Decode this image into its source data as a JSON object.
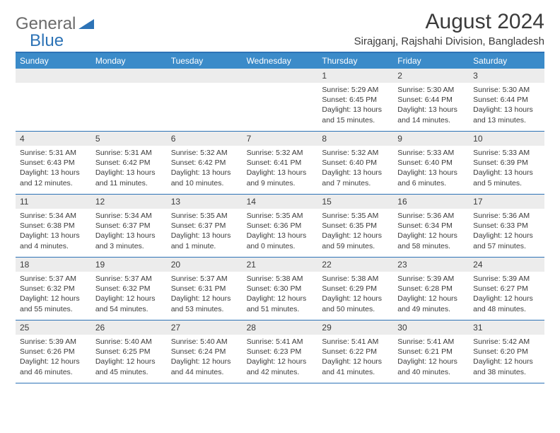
{
  "logo": {
    "text1": "General",
    "text2": "Blue"
  },
  "title": "August 2024",
  "location": "Sirajganj, Rajshahi Division, Bangladesh",
  "colors": {
    "header_bg": "#3b8bc9",
    "border": "#2d73b6",
    "date_bg": "#ececec",
    "text": "#3b3b3b",
    "logo_gray": "#6b6b6b",
    "logo_blue": "#2d73b6",
    "white": "#ffffff"
  },
  "day_names": [
    "Sunday",
    "Monday",
    "Tuesday",
    "Wednesday",
    "Thursday",
    "Friday",
    "Saturday"
  ],
  "weeks": [
    [
      {
        "empty": true
      },
      {
        "empty": true
      },
      {
        "empty": true
      },
      {
        "empty": true
      },
      {
        "date": "1",
        "sunrise": "5:29 AM",
        "sunset": "6:45 PM",
        "daylight": "13 hours and 15 minutes."
      },
      {
        "date": "2",
        "sunrise": "5:30 AM",
        "sunset": "6:44 PM",
        "daylight": "13 hours and 14 minutes."
      },
      {
        "date": "3",
        "sunrise": "5:30 AM",
        "sunset": "6:44 PM",
        "daylight": "13 hours and 13 minutes."
      }
    ],
    [
      {
        "date": "4",
        "sunrise": "5:31 AM",
        "sunset": "6:43 PM",
        "daylight": "13 hours and 12 minutes."
      },
      {
        "date": "5",
        "sunrise": "5:31 AM",
        "sunset": "6:42 PM",
        "daylight": "13 hours and 11 minutes."
      },
      {
        "date": "6",
        "sunrise": "5:32 AM",
        "sunset": "6:42 PM",
        "daylight": "13 hours and 10 minutes."
      },
      {
        "date": "7",
        "sunrise": "5:32 AM",
        "sunset": "6:41 PM",
        "daylight": "13 hours and 9 minutes."
      },
      {
        "date": "8",
        "sunrise": "5:32 AM",
        "sunset": "6:40 PM",
        "daylight": "13 hours and 7 minutes."
      },
      {
        "date": "9",
        "sunrise": "5:33 AM",
        "sunset": "6:40 PM",
        "daylight": "13 hours and 6 minutes."
      },
      {
        "date": "10",
        "sunrise": "5:33 AM",
        "sunset": "6:39 PM",
        "daylight": "13 hours and 5 minutes."
      }
    ],
    [
      {
        "date": "11",
        "sunrise": "5:34 AM",
        "sunset": "6:38 PM",
        "daylight": "13 hours and 4 minutes."
      },
      {
        "date": "12",
        "sunrise": "5:34 AM",
        "sunset": "6:37 PM",
        "daylight": "13 hours and 3 minutes."
      },
      {
        "date": "13",
        "sunrise": "5:35 AM",
        "sunset": "6:37 PM",
        "daylight": "13 hours and 1 minute."
      },
      {
        "date": "14",
        "sunrise": "5:35 AM",
        "sunset": "6:36 PM",
        "daylight": "13 hours and 0 minutes."
      },
      {
        "date": "15",
        "sunrise": "5:35 AM",
        "sunset": "6:35 PM",
        "daylight": "12 hours and 59 minutes."
      },
      {
        "date": "16",
        "sunrise": "5:36 AM",
        "sunset": "6:34 PM",
        "daylight": "12 hours and 58 minutes."
      },
      {
        "date": "17",
        "sunrise": "5:36 AM",
        "sunset": "6:33 PM",
        "daylight": "12 hours and 57 minutes."
      }
    ],
    [
      {
        "date": "18",
        "sunrise": "5:37 AM",
        "sunset": "6:32 PM",
        "daylight": "12 hours and 55 minutes."
      },
      {
        "date": "19",
        "sunrise": "5:37 AM",
        "sunset": "6:32 PM",
        "daylight": "12 hours and 54 minutes."
      },
      {
        "date": "20",
        "sunrise": "5:37 AM",
        "sunset": "6:31 PM",
        "daylight": "12 hours and 53 minutes."
      },
      {
        "date": "21",
        "sunrise": "5:38 AM",
        "sunset": "6:30 PM",
        "daylight": "12 hours and 51 minutes."
      },
      {
        "date": "22",
        "sunrise": "5:38 AM",
        "sunset": "6:29 PM",
        "daylight": "12 hours and 50 minutes."
      },
      {
        "date": "23",
        "sunrise": "5:39 AM",
        "sunset": "6:28 PM",
        "daylight": "12 hours and 49 minutes."
      },
      {
        "date": "24",
        "sunrise": "5:39 AM",
        "sunset": "6:27 PM",
        "daylight": "12 hours and 48 minutes."
      }
    ],
    [
      {
        "date": "25",
        "sunrise": "5:39 AM",
        "sunset": "6:26 PM",
        "daylight": "12 hours and 46 minutes."
      },
      {
        "date": "26",
        "sunrise": "5:40 AM",
        "sunset": "6:25 PM",
        "daylight": "12 hours and 45 minutes."
      },
      {
        "date": "27",
        "sunrise": "5:40 AM",
        "sunset": "6:24 PM",
        "daylight": "12 hours and 44 minutes."
      },
      {
        "date": "28",
        "sunrise": "5:41 AM",
        "sunset": "6:23 PM",
        "daylight": "12 hours and 42 minutes."
      },
      {
        "date": "29",
        "sunrise": "5:41 AM",
        "sunset": "6:22 PM",
        "daylight": "12 hours and 41 minutes."
      },
      {
        "date": "30",
        "sunrise": "5:41 AM",
        "sunset": "6:21 PM",
        "daylight": "12 hours and 40 minutes."
      },
      {
        "date": "31",
        "sunrise": "5:42 AM",
        "sunset": "6:20 PM",
        "daylight": "12 hours and 38 minutes."
      }
    ]
  ],
  "labels": {
    "sunrise": "Sunrise: ",
    "sunset": "Sunset: ",
    "daylight": "Daylight: "
  }
}
